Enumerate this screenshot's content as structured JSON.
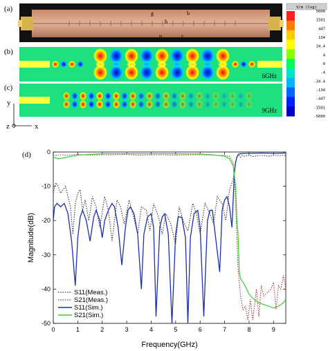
{
  "panels": {
    "a_label": "(a)",
    "b_label": "(b)",
    "c_label": "(c)",
    "d_label": "(d)",
    "b_freq": "6GHz",
    "c_freq": "9GHz",
    "dims": {
      "g": "g",
      "h": "h",
      "b": "b",
      "p": "p",
      "c": "c"
    },
    "axes": {
      "y": "y",
      "z": "z",
      "x": "x"
    }
  },
  "colorbar": {
    "title": "V/m (log)",
    "ticks": [
      "5000",
      "1501",
      "447",
      "134",
      "34.4",
      "4",
      "0",
      "-4",
      "-34.4",
      "-134",
      "-447",
      "-1501",
      "-5000"
    ],
    "colors": [
      "#ff1f1f",
      "#ff7a00",
      "#ffcc00",
      "#ffff00",
      "#8cff00",
      "#00ff5a",
      "#00e6c8",
      "#00b4ff",
      "#0064ff",
      "#0020ff",
      "#0000c8"
    ]
  },
  "chart_data": {
    "type": "line",
    "title": "",
    "xlabel": "Frequency(GHz)",
    "ylabel": "Magnitude(dB)",
    "xlim": [
      0,
      9.5
    ],
    "ylim": [
      -50,
      0
    ],
    "xticks": [
      0,
      1,
      2,
      3,
      4,
      5,
      6,
      7,
      8,
      9
    ],
    "yticks": [
      0,
      -10,
      -20,
      -30,
      -40,
      -50
    ],
    "legend_position": "bottom-left",
    "series": [
      {
        "name": "S11(Meas.)",
        "color": "#333333",
        "style": "dotted",
        "x": [
          0,
          0.1,
          0.2,
          0.3,
          0.4,
          0.5,
          0.6,
          0.7,
          0.8,
          0.9,
          1.0,
          1.1,
          1.2,
          1.3,
          1.45,
          1.6,
          1.75,
          1.9,
          2.1,
          2.25,
          2.4,
          2.6,
          2.75,
          2.9,
          3.1,
          3.25,
          3.45,
          3.6,
          3.8,
          3.95,
          4.1,
          4.3,
          4.45,
          4.6,
          4.8,
          5.0,
          5.15,
          5.3,
          5.5,
          5.7,
          5.85,
          6.0,
          6.2,
          6.4,
          6.55,
          6.7,
          6.9,
          7.05,
          7.2,
          7.35,
          7.45,
          7.5,
          7.55,
          7.6,
          7.65,
          7.7,
          7.8,
          8.0,
          8.2,
          8.4,
          8.6,
          8.8,
          9.0,
          9.2,
          9.5
        ],
        "y": [
          -12,
          -9,
          -10,
          -12,
          -11,
          -10,
          -13,
          -16,
          -24,
          -15,
          -12,
          -11,
          -17,
          -14,
          -20,
          -13,
          -16,
          -22,
          -13,
          -17,
          -26,
          -14,
          -16,
          -21,
          -14,
          -18,
          -24,
          -16,
          -17,
          -23,
          -15,
          -19,
          -24,
          -18,
          -21,
          -27,
          -16,
          -20,
          -23,
          -15,
          -18,
          -24,
          -15,
          -18,
          -21,
          -13,
          -15,
          -20,
          -11,
          -8,
          -3,
          -1.5,
          -1.2,
          -1,
          -1.5,
          -1,
          -1.2,
          -1,
          -1.3,
          -1,
          -1,
          -1.2,
          -1,
          -1,
          -1
        ]
      },
      {
        "name": "S21(Meas.)",
        "color": "#b03030",
        "style": "dotted",
        "x": [
          0,
          0.3,
          0.6,
          1.0,
          1.5,
          2.0,
          2.5,
          3.0,
          3.5,
          4.0,
          4.5,
          5.0,
          5.5,
          6.0,
          6.5,
          7.0,
          7.2,
          7.35,
          7.45,
          7.55,
          7.65,
          7.75,
          7.85,
          7.95,
          8.05,
          8.15,
          8.3,
          8.4,
          8.5,
          8.6,
          8.75,
          8.9,
          9.0,
          9.1,
          9.2,
          9.3,
          9.4,
          9.5
        ],
        "y": [
          -1,
          -0.8,
          -0.9,
          -0.7,
          -0.9,
          -0.8,
          -0.8,
          -0.7,
          -0.9,
          -0.8,
          -0.8,
          -0.9,
          -0.8,
          -0.8,
          -0.9,
          -1,
          -1.3,
          -3,
          -15,
          -34,
          -42,
          -46,
          -45,
          -49,
          -43,
          -49,
          -40,
          -48,
          -39,
          -42,
          -41,
          -40,
          -38,
          -46,
          -39,
          -40,
          -36,
          -40
        ]
      },
      {
        "name": "S11(Sim.)",
        "color": "#1a2fb0",
        "style": "solid",
        "x": [
          0,
          0.05,
          0.15,
          0.3,
          0.45,
          0.6,
          0.75,
          0.9,
          1.0,
          1.1,
          1.2,
          1.35,
          1.5,
          1.65,
          1.75,
          1.9,
          2.0,
          2.1,
          2.25,
          2.4,
          2.5,
          2.65,
          2.8,
          2.95,
          3.05,
          3.15,
          3.3,
          3.45,
          3.6,
          3.7,
          3.85,
          4.0,
          4.1,
          4.2,
          4.35,
          4.45,
          4.55,
          4.7,
          4.85,
          5.0,
          5.1,
          5.25,
          5.4,
          5.5,
          5.6,
          5.75,
          5.9,
          6.0,
          6.15,
          6.3,
          6.4,
          6.5,
          6.65,
          6.8,
          6.9,
          7.0,
          7.1,
          7.2,
          7.3,
          7.4,
          7.45,
          7.5,
          7.55,
          7.6,
          7.8,
          8.0,
          8.5,
          9.0,
          9.5
        ],
        "y": [
          -20,
          -16,
          -15,
          -16,
          -15,
          -18,
          -26,
          -39,
          -25,
          -19,
          -17,
          -20,
          -26,
          -19,
          -17,
          -20,
          -25,
          -20,
          -17,
          -15,
          -16,
          -22,
          -33,
          -22,
          -17,
          -16,
          -18,
          -24,
          -40,
          -24,
          -19,
          -18,
          -22,
          -48,
          -22,
          -19,
          -18,
          -24,
          -50,
          -24,
          -19,
          -19,
          -25,
          -50,
          -25,
          -18,
          -17,
          -22,
          -48,
          -20,
          -17,
          -17,
          -26,
          -35,
          -17,
          -14,
          -13,
          -16,
          -22,
          -6,
          -3,
          -1.5,
          -0.8,
          -0.5,
          -0.4,
          -0.4,
          -0.3,
          -0.4,
          -0.3
        ]
      },
      {
        "name": "S21(Sim.)",
        "color": "#3fd23f",
        "style": "solid",
        "x": [
          0,
          0.2,
          0.5,
          1.0,
          2.0,
          3.0,
          4.0,
          5.0,
          6.0,
          6.5,
          7.0,
          7.2,
          7.35,
          7.45,
          7.5,
          7.55,
          7.6,
          7.65,
          7.7,
          7.75,
          7.8,
          7.9,
          8.0,
          8.2,
          8.4,
          8.6,
          8.8,
          9.0,
          9.2,
          9.4,
          9.5
        ],
        "y": [
          -1.5,
          -2,
          -1.6,
          -0.9,
          -0.5,
          -0.5,
          -0.5,
          -0.5,
          -0.6,
          -0.8,
          -1.2,
          -2,
          -4,
          -10,
          -20,
          -24,
          -35,
          -37,
          -37.5,
          -38,
          -38.5,
          -40,
          -41.5,
          -43,
          -44,
          -44.5,
          -45,
          -45.5,
          -45,
          -44,
          -43
        ]
      }
    ]
  }
}
